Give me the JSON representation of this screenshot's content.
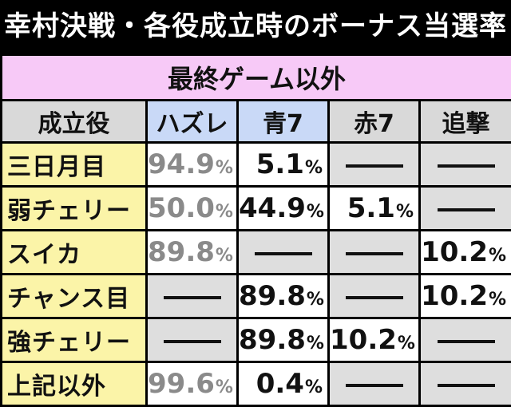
{
  "title": "幸村決戦・各役成立時のボーナス当選率",
  "subtitle": "最終ゲーム以外",
  "columns": [
    "成立役",
    "ハズレ",
    "青7",
    "赤7",
    "追撃"
  ],
  "rows": [
    {
      "role": "三日月目",
      "hazure": "94.9",
      "ao7": "5.1",
      "aka7": "",
      "tsuigeki": ""
    },
    {
      "role": "弱チェリー",
      "hazure": "50.0",
      "ao7": "44.9",
      "aka7": "5.1",
      "tsuigeki": ""
    },
    {
      "role": "スイカ",
      "hazure": "89.8",
      "ao7": "",
      "aka7": "",
      "tsuigeki": "10.2"
    },
    {
      "role": "チャンス目",
      "hazure": "",
      "ao7": "89.8",
      "aka7": "",
      "tsuigeki": "10.2"
    },
    {
      "role": "強チェリー",
      "hazure": "",
      "ao7": "89.8",
      "aka7": "10.2",
      "tsuigeki": ""
    },
    {
      "role": "上記以外",
      "hazure": "99.6",
      "ao7": "0.4",
      "aka7": "",
      "tsuigeki": ""
    }
  ],
  "unit": "%",
  "colors": {
    "title_bg": "#000000",
    "subtitle_bg": "#f7c9f7",
    "header_gray": "#d9d9d9",
    "header_blue": "#c9d9f7",
    "role_yellow": "#fbf4a8",
    "empty_cell": "#dedede",
    "hazure_text": "#8a8a8a"
  }
}
